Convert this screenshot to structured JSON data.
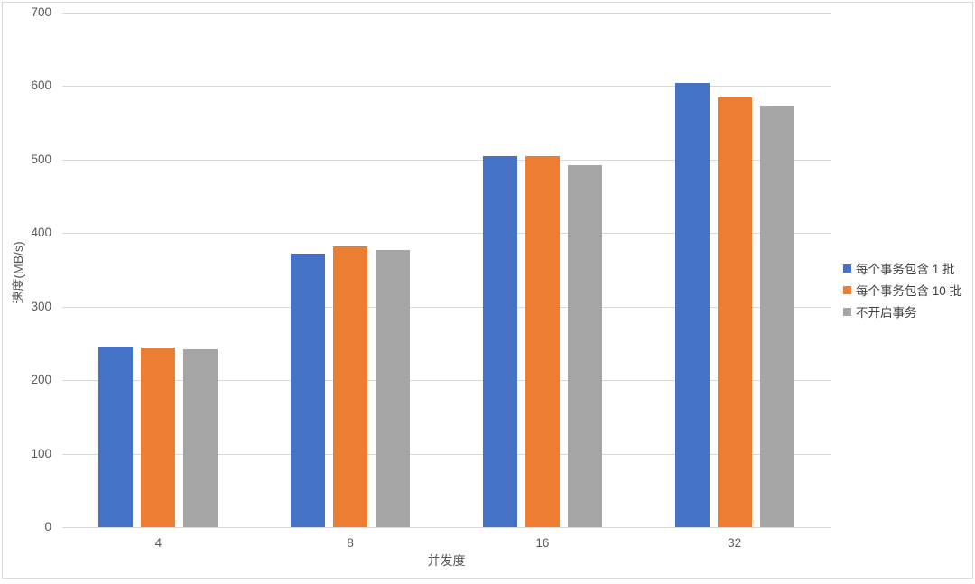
{
  "page": {
    "background": "#ffffff",
    "border_color": "#d9d9d9",
    "text_color": "#595959",
    "grid_color": "#d9d9d9"
  },
  "chart_data": {
    "type": "bar",
    "title": "",
    "xlabel": "并发度",
    "ylabel": "速度(MB/s)",
    "categories": [
      "4",
      "8",
      "16",
      "32"
    ],
    "series": [
      {
        "name": "每个事务包含 1 批",
        "color": "#4472C4",
        "values": [
          246,
          372,
          505,
          604
        ]
      },
      {
        "name": "每个事务包含 10 批",
        "color": "#ED7D31",
        "values": [
          245,
          382,
          505,
          584
        ]
      },
      {
        "name": "不开启事务",
        "color": "#A5A5A5",
        "values": [
          242,
          377,
          493,
          573
        ]
      }
    ],
    "ylim": [
      0,
      700
    ],
    "yticks": [
      0,
      100,
      200,
      300,
      400,
      500,
      600,
      700
    ],
    "grid": "horizontal",
    "legend_position": "right"
  }
}
